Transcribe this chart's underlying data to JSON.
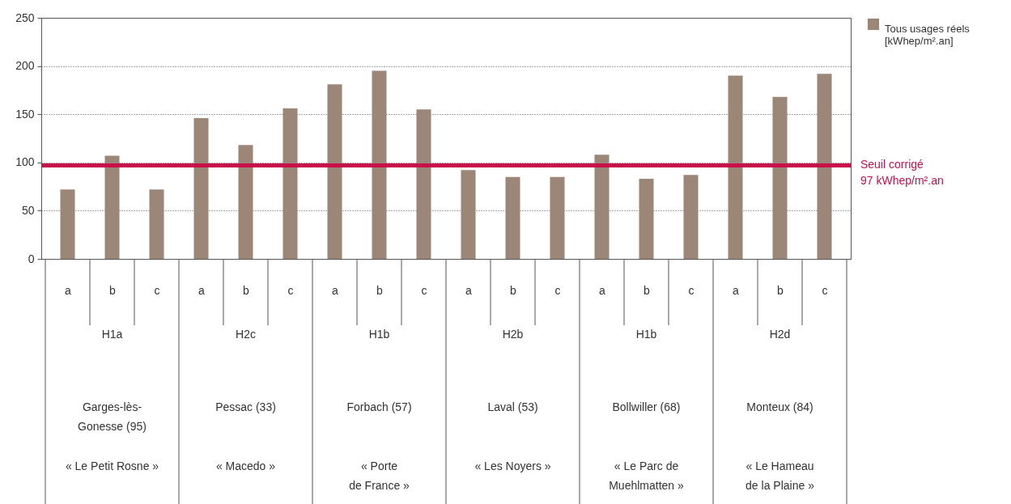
{
  "chart_data": {
    "type": "bar",
    "categories": [
      "a",
      "b",
      "c",
      "a",
      "b",
      "c",
      "a",
      "b",
      "c",
      "a",
      "b",
      "c",
      "a",
      "b",
      "c",
      "a",
      "b",
      "c"
    ],
    "series": [
      {
        "name": "Tous usages réels\n[kWhep/m².an]",
        "color": "#9c8677",
        "values": [
          72,
          107,
          72,
          146,
          118,
          156,
          181,
          195,
          155,
          92,
          85,
          85,
          108,
          83,
          87,
          190,
          168,
          192
        ]
      }
    ],
    "ylim": [
      0,
      250
    ],
    "yticks": [
      0,
      50,
      100,
      150,
      200,
      250
    ],
    "grid": "y",
    "legend": "top right",
    "ref_lines": [
      {
        "axis": "y",
        "value": 97,
        "label": "Seuil corrigé\n97 kWhep/m².an",
        "color": "#c8104a"
      }
    ],
    "annotations": [
      "H1a",
      "Garges-lès-\nGonesse (95)",
      "« Le Petit Rosne »",
      "H2c",
      "Pessac (33)",
      "« Macedo »",
      "H1b",
      "Forbach (57)",
      "« Porte\nde France »",
      "H2b",
      "Laval (53)",
      "« Les Noyers »",
      "H1b",
      "Bollwiller (68)",
      "« Le Parc de\nMuehlmatten »",
      "H2d",
      "Monteux (84)",
      "« Le Hameau\nde la Plaine »"
    ]
  }
}
